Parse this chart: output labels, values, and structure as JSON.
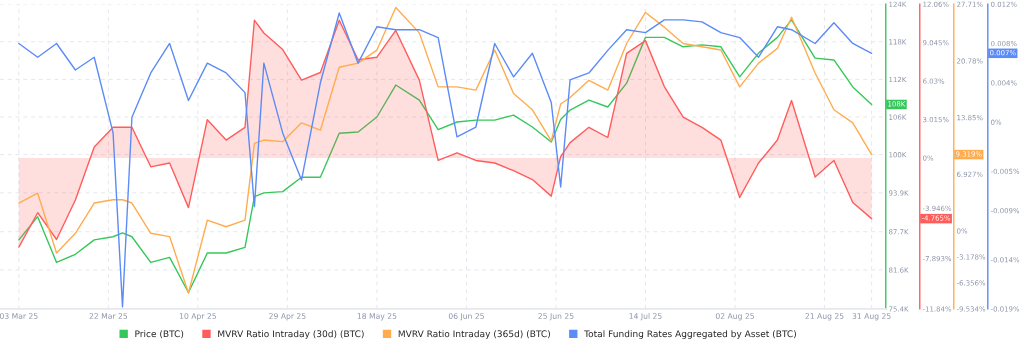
{
  "chart_data": [
    {
      "type": "line",
      "x": [
        "2025-03-03",
        "2025-03-07",
        "2025-03-11",
        "2025-03-15",
        "2025-03-19",
        "2025-03-23",
        "2025-03-25",
        "2025-03-27",
        "2025-03-31",
        "2025-04-04",
        "2025-04-08",
        "2025-04-12",
        "2025-04-16",
        "2025-04-20",
        "2025-04-22",
        "2025-04-24",
        "2025-04-28",
        "2025-05-02",
        "2025-05-06",
        "2025-05-10",
        "2025-05-14",
        "2025-05-18",
        "2025-05-22",
        "2025-05-27",
        "2025-05-31",
        "2025-06-04",
        "2025-06-08",
        "2025-06-12",
        "2025-06-16",
        "2025-06-20",
        "2025-06-24",
        "2025-06-26",
        "2025-06-28",
        "2025-07-02",
        "2025-07-06",
        "2025-07-10",
        "2025-07-14",
        "2025-07-18",
        "2025-07-22",
        "2025-07-26",
        "2025-07-30",
        "2025-08-03",
        "2025-08-07",
        "2025-08-11",
        "2025-08-14",
        "2025-08-19",
        "2025-08-23",
        "2025-08-27",
        "2025-08-31"
      ],
      "series": [
        {
          "name": "Price (BTC)",
          "color": "#36c75a",
          "values": [
            86.4,
            90.1,
            82.8,
            84.1,
            86.4,
            86.9,
            87.5,
            86.9,
            82.8,
            83.6,
            78,
            84.3,
            84.3,
            85.2,
            93.3,
            93.9,
            94.1,
            96.4,
            96.4,
            103.4,
            103.6,
            106.0,
            111.1,
            108.7,
            104.0,
            105.2,
            105.5,
            105.5,
            106.3,
            104.4,
            102.0,
            105.6,
            107.1,
            108.7,
            107.6,
            111.4,
            118.7,
            118.7,
            117.2,
            117.5,
            117.2,
            112.4,
            116.2,
            118.7,
            121.5,
            115.4,
            115.1,
            110.8,
            108
          ]
        },
        {
          "name": "MVRV Ratio Intraday (30d) (BTC)",
          "color": "#ff5c5c",
          "axis": "y2",
          "type": "area",
          "values": [
            -7.0,
            -4.3,
            -6.4,
            -3.3,
            0.85,
            2.4,
            2.4,
            2.4,
            -0.7,
            -0.4,
            -3.9,
            3.0,
            1.4,
            2.4,
            10.8,
            9.8,
            8.5,
            6.1,
            6.7,
            10.8,
            7.7,
            7.9,
            10.0,
            6.1,
            -0.2,
            0.4,
            -0.2,
            -0.4,
            -1.0,
            -1.7,
            -3.0,
            0.1,
            1.2,
            2.4,
            1.6,
            8.2,
            9.2,
            5.6,
            3.2,
            2.4,
            1.4,
            -3.1,
            -0.4,
            1.4,
            4.5,
            -1.5,
            -0.2,
            -3.5,
            -4.765
          ]
        }
      ],
      "xlim": [
        "2025-02-27",
        "2025-09-03"
      ],
      "xticks": [
        {
          "value": "2025-03-03",
          "label": "03 Mar 25"
        },
        {
          "value": "2025-03-22",
          "label": "22 Mar 25"
        },
        {
          "value": "2025-04-10",
          "label": "10 Apr 25"
        },
        {
          "value": "2025-04-29",
          "label": "29 Apr 25"
        },
        {
          "value": "2025-05-18",
          "label": "18 May 25"
        },
        {
          "value": "2025-06-06",
          "label": "06 Jun 25"
        },
        {
          "value": "2025-06-25",
          "label": "25 Jun 25"
        },
        {
          "value": "2025-07-14",
          "label": "14 Jul 25"
        },
        {
          "value": "2025-08-02",
          "label": "02 Aug 25"
        },
        {
          "value": "2025-08-21",
          "label": "21 Aug 25"
        },
        {
          "value": "2025-08-31",
          "label": "31 Aug 25"
        }
      ],
      "ylim": [
        75.4,
        124
      ],
      "yticks": [
        {
          "value": 124,
          "label": "124K"
        },
        {
          "value": 118,
          "label": "118K"
        },
        {
          "value": 112,
          "label": "112K"
        },
        {
          "value": 106,
          "label": "106K"
        },
        {
          "value": 100,
          "label": "100K"
        },
        {
          "value": 93.9,
          "label": "93.9K"
        },
        {
          "value": 87.7,
          "label": "87.7K"
        },
        {
          "value": 81.6,
          "label": "81.6K"
        },
        {
          "value": 75.4,
          "label": "75.4K"
        }
      ],
      "y2lim": [
        -11.84,
        12.06
      ],
      "y2ticks": [
        {
          "value": 12.06,
          "label": "12.06%"
        },
        {
          "value": 9.045,
          "label": "9.045%"
        },
        {
          "value": 6.03,
          "label": "6.03%"
        },
        {
          "value": 3.015,
          "label": "3.015%"
        },
        {
          "value": 0,
          "label": "0%"
        },
        {
          "value": -3.946,
          "label": "-3.946%"
        },
        {
          "value": -7.893,
          "label": "-7.893%"
        },
        {
          "value": -11.84,
          "label": "-11.84%"
        }
      ],
      "annotations": [
        "108K",
        "-4.765%"
      ],
      "grid": true,
      "legend": "bottom"
    },
    {
      "type": "line",
      "x": [
        "2025-03-03",
        "2025-03-07",
        "2025-03-11",
        "2025-03-15",
        "2025-03-19",
        "2025-03-23",
        "2025-03-25",
        "2025-03-27",
        "2025-03-31",
        "2025-04-04",
        "2025-04-08",
        "2025-04-12",
        "2025-04-16",
        "2025-04-20",
        "2025-04-22",
        "2025-04-24",
        "2025-04-28",
        "2025-05-02",
        "2025-05-06",
        "2025-05-10",
        "2025-05-14",
        "2025-05-18",
        "2025-05-22",
        "2025-05-27",
        "2025-05-31",
        "2025-06-04",
        "2025-06-08",
        "2025-06-12",
        "2025-06-16",
        "2025-06-20",
        "2025-06-24",
        "2025-06-26",
        "2025-06-28",
        "2025-07-02",
        "2025-07-06",
        "2025-07-10",
        "2025-07-14",
        "2025-07-18",
        "2025-07-22",
        "2025-07-26",
        "2025-07-30",
        "2025-08-03",
        "2025-08-07",
        "2025-08-11",
        "2025-08-14",
        "2025-08-19",
        "2025-08-23",
        "2025-08-27",
        "2025-08-31"
      ],
      "series": [
        {
          "name": "MVRV Ratio Intraday (365d) (BTC)",
          "color": "#ffac4f",
          "values": [
            3.4,
            4.6,
            -2.7,
            -0.3,
            3.4,
            3.8,
            3.8,
            3.4,
            -0.3,
            -0.7,
            -7.6,
            1.3,
            0.5,
            1.3,
            10.7,
            11.1,
            10.9,
            13.2,
            12.3,
            20.0,
            20.5,
            22.1,
            27.3,
            24.2,
            17.6,
            17.6,
            17.2,
            22.1,
            16.8,
            14.8,
            11.0,
            15.5,
            16.3,
            18.4,
            17.2,
            22.9,
            26.7,
            24.9,
            22.9,
            22.5,
            22.1,
            17.6,
            20.5,
            22.3,
            26.1,
            19.3,
            14.8,
            13.2,
            9.319
          ]
        },
        {
          "name": "Total Funding Rates Aggregated by Asset (BTC)",
          "color": "#5b8bf7",
          "axis": "y2",
          "values": [
            0.008,
            0.0066,
            0.008,
            0.0053,
            0.0066,
            -0.0011,
            -0.0188,
            0.0005,
            0.005,
            0.008,
            0.0022,
            0.006,
            0.005,
            0.003,
            -0.0086,
            0.006,
            -0.0011,
            -0.0059,
            0.004,
            0.0111,
            0.006,
            0.0097,
            0.0094,
            0.0094,
            0.0086,
            -0.0015,
            -0.0005,
            0.008,
            0.0046,
            0.007,
            0.002,
            -0.0066,
            0.0043,
            0.005,
            0.0073,
            0.0094,
            0.0091,
            0.0104,
            0.0104,
            0.0102,
            0.0091,
            0.0086,
            0.0066,
            0.0097,
            0.0094,
            0.008,
            0.0101,
            0.008,
            0.007
          ]
        }
      ],
      "xlim": [
        "2025-02-27",
        "2025-09-03"
      ],
      "ylim": [
        -9.534,
        27.71
      ],
      "yticks": [
        {
          "value": 27.71,
          "label": "27.71%"
        },
        {
          "value": 20.78,
          "label": "20.78%"
        },
        {
          "value": 13.85,
          "label": "13.85%"
        },
        {
          "value": 6.927,
          "label": "6.927%"
        },
        {
          "value": 0,
          "label": "0%"
        },
        {
          "value": -3.178,
          "label": "-3.178%"
        },
        {
          "value": -6.356,
          "label": "-6.356%"
        },
        {
          "value": -9.534,
          "label": "-9.534%"
        }
      ],
      "y2lim": [
        -0.019,
        0.012
      ],
      "y2ticks": [
        {
          "value": 0.012,
          "label": "0.012%"
        },
        {
          "value": 0.008,
          "label": "0.008%"
        },
        {
          "value": 0.004,
          "label": "0.004%"
        },
        {
          "value": 0,
          "label": "0%"
        },
        {
          "value": -0.005,
          "label": "-0.005%"
        },
        {
          "value": -0.009,
          "label": "-0.009%"
        },
        {
          "value": -0.014,
          "label": "-0.014%"
        },
        {
          "value": -0.019,
          "label": "-0.019%"
        }
      ],
      "tick_labels": "y",
      "annotations": [
        "9.319%",
        "0.007%"
      ],
      "legend": "bottom"
    }
  ]
}
